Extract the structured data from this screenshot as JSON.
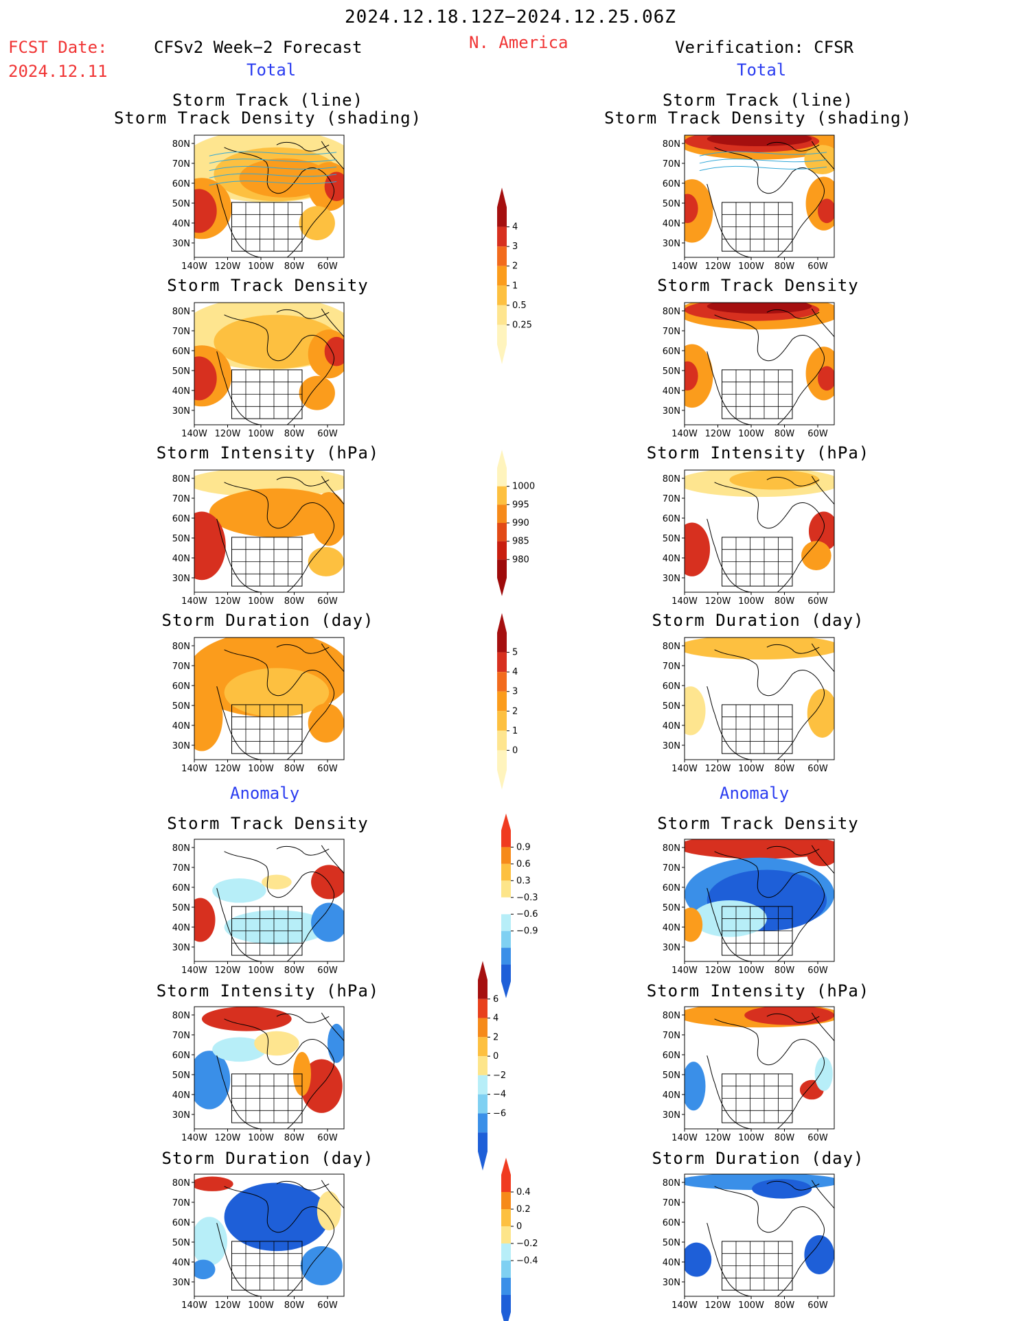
{
  "header": {
    "period": "2024.12.18.12Z−2024.12.25.06Z",
    "fcst_label": "FCST Date:",
    "fcst_date": "2024.12.11",
    "left_title": "CFSv2 Week−2 Forecast",
    "region": "N. America",
    "right_title": "Verification: CFSR"
  },
  "sections": {
    "total": "Total",
    "anomaly": "Anomaly"
  },
  "panel_titles": {
    "track_line": "Storm Track (line)",
    "track_density_shading": "Storm Track Density (shading)",
    "track_density": "Storm Track Density",
    "intensity": "Storm Intensity (hPa)",
    "duration": "Storm Duration (day)"
  },
  "axes": {
    "lat_labels": [
      "80N",
      "70N",
      "60N",
      "50N",
      "40N",
      "30N"
    ],
    "lon_labels": [
      "140W",
      "120W",
      "100W",
      "80W",
      "60W"
    ]
  },
  "colorbars": {
    "total_density": {
      "labels": [
        "4",
        "3",
        "2",
        "1",
        "0.5",
        "0.25"
      ],
      "colors": [
        "#a50f0f",
        "#d7301f",
        "#f26b1d",
        "#fb9c1c",
        "#fdc040",
        "#fee58f",
        "#fff4bd"
      ]
    },
    "total_intensity": {
      "labels": [
        "1000",
        "995",
        "990",
        "985",
        "980"
      ],
      "colors": [
        "#fff4bd",
        "#fdc040",
        "#f68a1a",
        "#e24a16",
        "#c81e0f",
        "#9e0a0a"
      ]
    },
    "total_duration": {
      "labels": [
        "5",
        "4",
        "3",
        "2",
        "1",
        "0"
      ],
      "colors": [
        "#a50f0f",
        "#d7301f",
        "#f26b1d",
        "#fb9c1c",
        "#fdc040",
        "#fee58f",
        "#fff4bd"
      ]
    },
    "anom_density": {
      "labels": [
        "0.9",
        "0.6",
        "0.3",
        "−0.3",
        "−0.6",
        "−0.9"
      ],
      "colors": [
        "#f03b20",
        "#f68a1a",
        "#fdc040",
        "#fde58a",
        "#ffffff",
        "#b7eef8",
        "#7fd0f2",
        "#3a8fe8",
        "#1e5fd8"
      ]
    },
    "anom_intensity": {
      "labels": [
        "6",
        "4",
        "2",
        "0",
        "−2",
        "−4",
        "−6"
      ],
      "colors": [
        "#a50f0f",
        "#e8401c",
        "#f68a1a",
        "#fdc040",
        "#fde58a",
        "#b7eef8",
        "#7fd0f2",
        "#3a8fe8",
        "#1e5fd8"
      ]
    },
    "anom_duration": {
      "labels": [
        "0.4",
        "0.2",
        "0",
        "−0.2",
        "−0.4"
      ],
      "colors": [
        "#f03b20",
        "#f68a1a",
        "#fdc040",
        "#fde58a",
        "#b7eef8",
        "#7fd0f2",
        "#3a8fe8",
        "#1e5fd8"
      ]
    }
  },
  "palette": {
    "orange": "#fb9c1c",
    "light_orange": "#fdc040",
    "yellow": "#fee58f",
    "red": "#d7301f",
    "dark_red": "#a50f0f",
    "light_blue": "#b7eef8",
    "blue": "#3a8fe8",
    "dark_blue": "#1e5fd8",
    "track_line": "#2fa7d8"
  }
}
